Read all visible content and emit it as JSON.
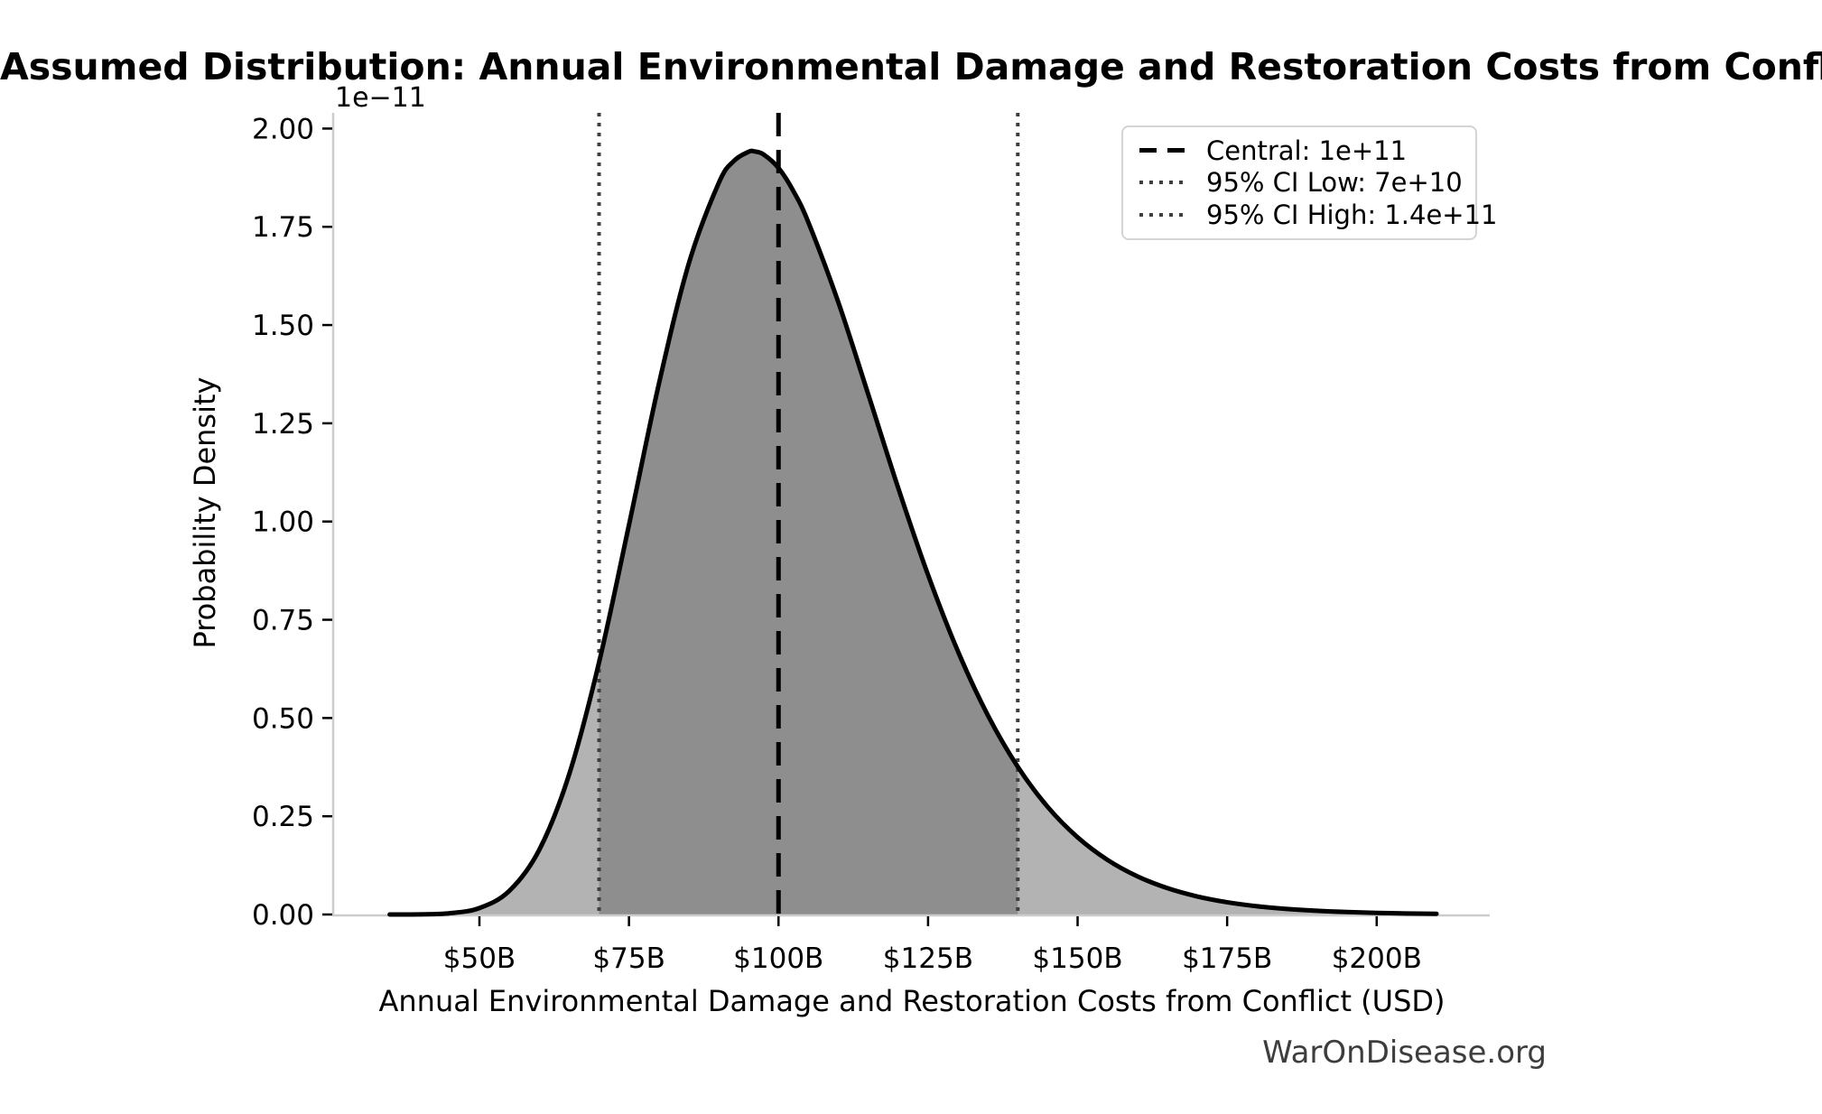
{
  "figure": {
    "title": "Assumed Distribution: Annual Environmental Damage and Restoration Costs from Conflict",
    "watermark": "WarOnDisease.org"
  },
  "chart_data": {
    "type": "area",
    "title": "Assumed Distribution: Annual Environmental Damage and Restoration Costs from Conflict",
    "xlabel": "Annual Environmental Damage and Restoration Costs from Conflict (USD)",
    "ylabel": "Probability Density",
    "y_axis_offset_label": "1e−11",
    "grid": false,
    "legend_position": "upper right",
    "xlim_billions": [
      25.7,
      218.9
    ],
    "ylim_density_1e11": [
      0,
      2.04
    ],
    "x_ticks": [
      {
        "value": 50,
        "label": "$50B"
      },
      {
        "value": 75,
        "label": "$75B"
      },
      {
        "value": 100,
        "label": "$100B"
      },
      {
        "value": 125,
        "label": "$125B"
      },
      {
        "value": 150,
        "label": "$150B"
      },
      {
        "value": 175,
        "label": "$175B"
      },
      {
        "value": 200,
        "label": "$200B"
      }
    ],
    "y_ticks": [
      {
        "value": 0.0,
        "label": "0.00"
      },
      {
        "value": 0.25,
        "label": "0.25"
      },
      {
        "value": 0.5,
        "label": "0.50"
      },
      {
        "value": 0.75,
        "label": "0.75"
      },
      {
        "value": 1.0,
        "label": "1.00"
      },
      {
        "value": 1.25,
        "label": "1.25"
      },
      {
        "value": 1.5,
        "label": "1.50"
      },
      {
        "value": 1.75,
        "label": "1.75"
      },
      {
        "value": 2.0,
        "label": "2.00"
      }
    ],
    "curve": {
      "x_billions": [
        35,
        40,
        45,
        50,
        55,
        60,
        65,
        70,
        75,
        80,
        85,
        90,
        92.5,
        95,
        96,
        97.5,
        100,
        102.5,
        105,
        110,
        115,
        120,
        125,
        130,
        135,
        140,
        145,
        150,
        155,
        160,
        165,
        170,
        175,
        180,
        185,
        190,
        195,
        200,
        205,
        210
      ],
      "density_1e11": [
        0.0,
        0.0003,
        0.0031,
        0.0164,
        0.0601,
        0.1644,
        0.3565,
        0.6415,
        0.9911,
        1.3502,
        1.6565,
        1.8612,
        1.917,
        1.9409,
        1.9418,
        1.9343,
        1.8997,
        1.8406,
        1.7611,
        1.558,
        1.3238,
        1.086,
        0.8642,
        0.6696,
        0.5068,
        0.3759,
        0.2738,
        0.1964,
        0.1389,
        0.0971,
        0.0671,
        0.0459,
        0.0312,
        0.021,
        0.0141,
        0.0094,
        0.0062,
        0.0041,
        0.0027,
        0.0018
      ]
    },
    "lines": {
      "central": {
        "value_billions": 100,
        "label": "Central: 1e+11",
        "style": "dashed",
        "color": "#000000"
      },
      "ci_low": {
        "value_billions": 70,
        "label": "95% CI Low: 7e+10",
        "style": "dotted",
        "color": "#3e3e3e"
      },
      "ci_high": {
        "value_billions": 140,
        "label": "95% CI High: 1.4e+11",
        "style": "dotted",
        "color": "#3e3e3e"
      }
    },
    "fills": {
      "outer_color": "#b3b3b3",
      "inner_color": "#8e8e8e",
      "inner_range_billions": [
        70,
        140
      ]
    },
    "colors": {
      "curve": "#000000",
      "spine": "#cccccc",
      "tick": "#000000",
      "text": "#000000",
      "watermark": "#3d3d3d"
    }
  }
}
